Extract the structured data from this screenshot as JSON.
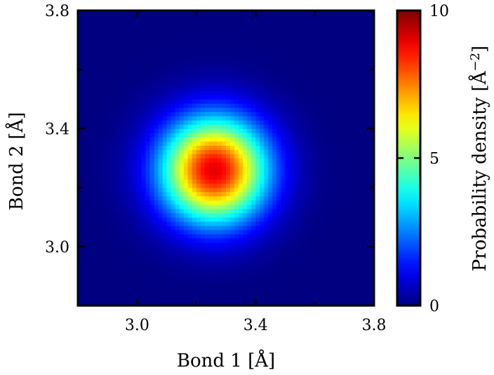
{
  "chart_data": {
    "type": "heatmap",
    "title": "",
    "xlabel": "Bond 1 [Å]",
    "ylabel": "Bond 2 [Å]",
    "xlim": [
      2.8,
      3.8
    ],
    "ylim": [
      2.8,
      3.8
    ],
    "x_ticks": [
      {
        "value": 3.0,
        "label": "3.0"
      },
      {
        "value": 3.4,
        "label": "3.4"
      },
      {
        "value": 3.8,
        "label": "3.8"
      }
    ],
    "y_ticks": [
      {
        "value": 3.0,
        "label": "3.0"
      },
      {
        "value": 3.4,
        "label": "3.4"
      },
      {
        "value": 3.8,
        "label": "3.8"
      }
    ],
    "x_minor_ticks": [
      3.2,
      3.6
    ],
    "y_minor_ticks": [
      3.2,
      3.6
    ],
    "peak": {
      "x": 3.26,
      "y": 3.26,
      "value": 9.0
    },
    "spread": {
      "sigma_x": 0.125,
      "sigma_y": 0.125
    },
    "colormap": "jet",
    "colorbar": {
      "label": "Probability density [Å",
      "label_exponent": "−2",
      "label_close": "]",
      "range": [
        0,
        10
      ],
      "ticks": [
        {
          "value": 0,
          "label": "0"
        },
        {
          "value": 5,
          "label": "5"
        },
        {
          "value": 10,
          "label": "10"
        }
      ]
    },
    "background_color": "#00007f",
    "grid": false
  }
}
